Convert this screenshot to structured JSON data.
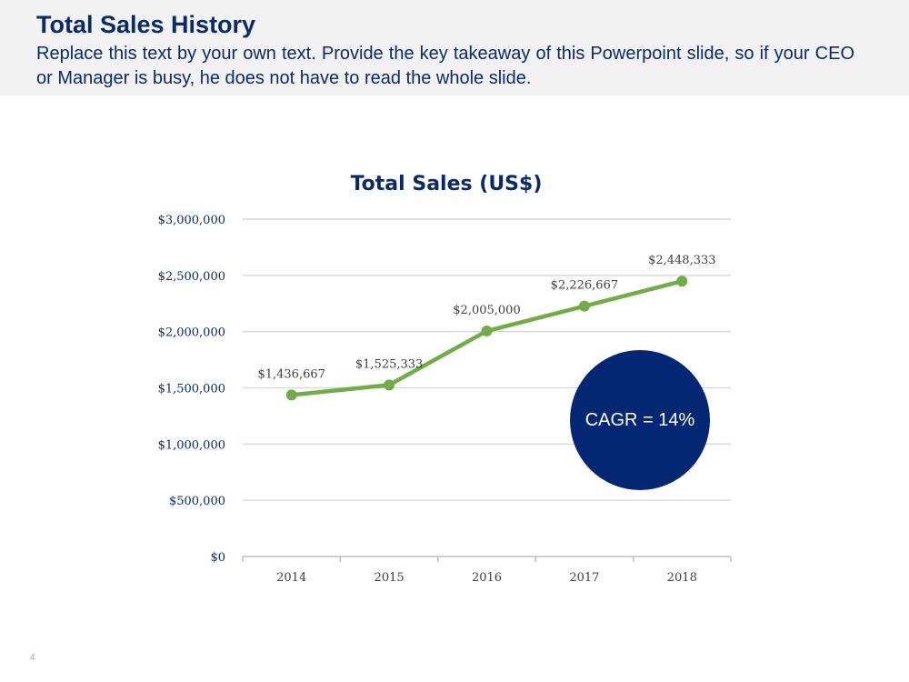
{
  "slide": {
    "title": "Total Sales History",
    "subtitle": "Replace this text by your own text. Provide the key takeaway of this Powerpoint slide, so if your CEO or Manager is busy, he does not have to read the whole slide.",
    "page_number": "4"
  },
  "callout": {
    "text": "CAGR = 14%",
    "color": "#042774"
  },
  "chart_data": {
    "type": "line",
    "title": "Total Sales (US$)",
    "categories": [
      "2014",
      "2015",
      "2016",
      "2017",
      "2018"
    ],
    "series": [
      {
        "values": [
          1436667,
          1525333,
          2005000,
          2226667,
          2448333
        ],
        "color": "#70ad47"
      }
    ],
    "data_labels": [
      "$1,436,667",
      "$1,525,333",
      "$2,005,000",
      "$2,226,667",
      "$2,448,333"
    ],
    "y_ticks": [
      0,
      500000,
      1000000,
      1500000,
      2000000,
      2500000,
      3000000
    ],
    "y_tick_labels": [
      "$0",
      "$500,000",
      "$1,000,000",
      "$1,500,000",
      "$2,000,000",
      "$2,500,000",
      "$3,000,000"
    ],
    "ylim": [
      0,
      3000000
    ],
    "xlabel": "",
    "ylabel": "",
    "grid": true,
    "legend": "none"
  }
}
